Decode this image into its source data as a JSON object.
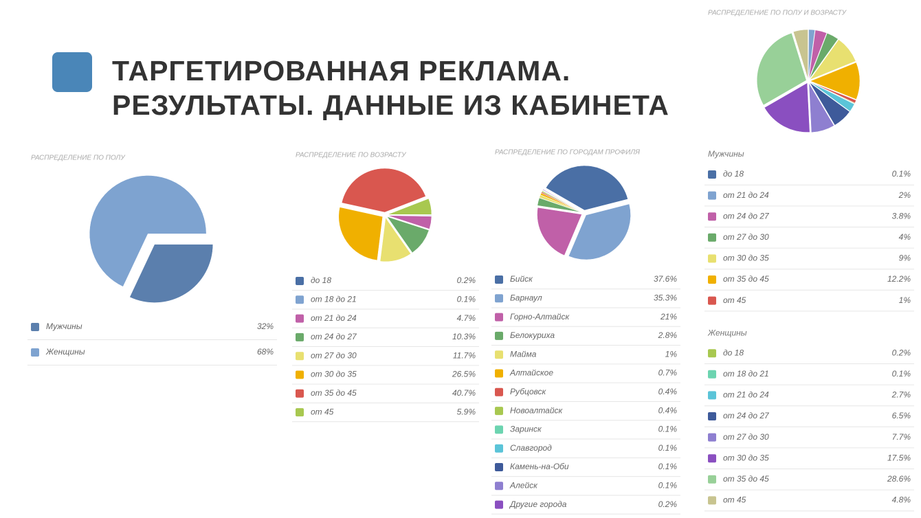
{
  "header": {
    "title_line1": "ТАРГЕТИРОВАННАЯ РЕКЛАМА.",
    "title_line2": "РЕЗУЛЬТАТЫ. ДАННЫЕ ИЗ КАБИНЕТА"
  },
  "chart_data": [
    {
      "type": "pie",
      "title": "РАСПРЕДЕЛЕНИЕ ПО ПОЛУ",
      "categories": [
        "Мужчины",
        "Женщины"
      ],
      "values": [
        32,
        68
      ],
      "value_labels": [
        "32%",
        "68%"
      ],
      "colors": [
        "#5b7fad",
        "#7ea3d0"
      ]
    },
    {
      "type": "pie",
      "title": "РАСПРЕДЕЛЕНИЕ ПО ВОЗРАСТУ",
      "categories": [
        "до 18",
        "от 18 до 21",
        "от 21 до 24",
        "от 24 до 27",
        "от 27 до 30",
        "от 30 до 35",
        "от 35 до 45",
        "от 45"
      ],
      "values": [
        0.2,
        0.1,
        4.7,
        10.3,
        11.7,
        26.5,
        40.7,
        5.9
      ],
      "value_labels": [
        "0.2%",
        "0.1%",
        "4.7%",
        "10.3%",
        "11.7%",
        "26.5%",
        "40.7%",
        "5.9%"
      ],
      "colors": [
        "#4a6fa5",
        "#7fa3d0",
        "#c060a8",
        "#6aaa6a",
        "#e8e070",
        "#f0b000",
        "#d9574f",
        "#a8c850"
      ]
    },
    {
      "type": "pie",
      "title": "РАСПРЕДЕЛЕНИЕ ПО ГОРОДАМ ПРОФИЛЯ",
      "categories": [
        "Бийск",
        "Барнаул",
        "Горно-Алтайск",
        "Белокуриха",
        "Майма",
        "Алтайское",
        "Рубцовск",
        "Новоалтайск",
        "Заринск",
        "Славгород",
        "Камень-на-Оби",
        "Алейск",
        "Другие города"
      ],
      "values": [
        37.6,
        35.3,
        21,
        2.8,
        1,
        0.7,
        0.4,
        0.4,
        0.1,
        0.1,
        0.1,
        0.1,
        0.2
      ],
      "value_labels": [
        "37.6%",
        "35.3%",
        "21%",
        "2.8%",
        "1%",
        "0.7%",
        "0.4%",
        "0.4%",
        "0.1%",
        "0.1%",
        "0.1%",
        "0.1%",
        "0.2%"
      ],
      "colors": [
        "#4a6fa5",
        "#7fa3d0",
        "#c060a8",
        "#6aaa6a",
        "#e8e070",
        "#f0b000",
        "#d9574f",
        "#a8c850",
        "#6cd4b0",
        "#5bc4d8",
        "#3e5a9a",
        "#8e7fd0",
        "#8a4fc0"
      ]
    },
    {
      "type": "pie",
      "title": "РАСПРЕДЕЛЕНИЕ ПО ПОЛУ И ВОЗРАСТУ",
      "series": [
        {
          "name": "Мужчины",
          "categories": [
            "до 18",
            "от 21 до 24",
            "от 24 до 27",
            "от 27 до 30",
            "от 30 до 35",
            "от 35 до 45",
            "от 45"
          ],
          "values": [
            0.1,
            2,
            3.8,
            4,
            9,
            12.2,
            1
          ],
          "value_labels": [
            "0.1%",
            "2%",
            "3.8%",
            "4%",
            "9%",
            "12.2%",
            "1%"
          ],
          "colors": [
            "#4a6fa5",
            "#7fa3d0",
            "#c060a8",
            "#6aaa6a",
            "#e8e070",
            "#f0b000",
            "#d9574f"
          ]
        },
        {
          "name": "Женщины",
          "categories": [
            "до 18",
            "от 18 до 21",
            "от 21 до 24",
            "от 24 до 27",
            "от 27 до 30",
            "от 30 до 35",
            "от 35 до 45",
            "от 45"
          ],
          "values": [
            0.2,
            0.1,
            2.7,
            6.5,
            7.7,
            17.5,
            28.6,
            4.8
          ],
          "value_labels": [
            "0.2%",
            "0.1%",
            "2.7%",
            "6.5%",
            "7.7%",
            "17.5%",
            "28.6%",
            "4.8%"
          ],
          "colors": [
            "#a8c850",
            "#6cd4b0",
            "#5bc4d8",
            "#3e5a9a",
            "#8e7fd0",
            "#8a4fc0",
            "#98d098",
            "#c8c490"
          ]
        }
      ]
    }
  ]
}
